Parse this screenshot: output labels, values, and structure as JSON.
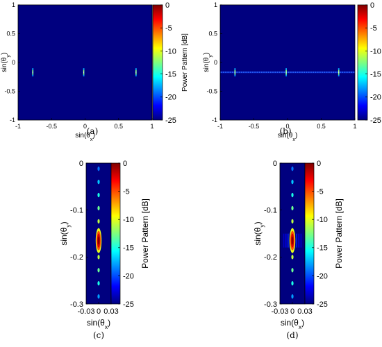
{
  "chart_data": [
    {
      "id": "a",
      "type": "heatmap",
      "caption": "(a)",
      "xlabel": "sin(θx)",
      "ylabel": "sin(θy)",
      "colorbar_label": "Power Pattern [dB]",
      "xlim": [
        -1,
        1
      ],
      "ylim": [
        -1,
        1
      ],
      "x_ticks": [
        -1,
        -0.5,
        0,
        0.5,
        1
      ],
      "x_tick_labels": [
        "-1",
        "-0.5",
        "0",
        "0.5",
        "1"
      ],
      "y_ticks": [
        1,
        0.5,
        0,
        -0.5,
        -1
      ],
      "y_tick_labels": [
        "1",
        "0.5",
        "0",
        "-0.5",
        "-1"
      ],
      "clim": [
        -25,
        0
      ],
      "colorbar_ticks": [
        0,
        -5,
        -10,
        -15,
        -20,
        -25
      ],
      "colorbar_tick_labels": [
        "0",
        "-5",
        "-10",
        "-15",
        "-20",
        "-25"
      ],
      "beams": [
        {
          "x": -0.78,
          "y": -0.17,
          "peak_db": -12
        },
        {
          "x": -0.02,
          "y": -0.17,
          "peak_db": -12
        },
        {
          "x": 0.76,
          "y": -0.17,
          "peak_db": -12
        }
      ],
      "sidelobe_band": false
    },
    {
      "id": "b",
      "type": "heatmap",
      "caption": "(b)",
      "xlabel": "sin(θx)",
      "ylabel": "sin(θy)",
      "colorbar_label": "Power Pattern [dB]",
      "xlim": [
        -1,
        1
      ],
      "ylim": [
        -1,
        1
      ],
      "x_ticks": [
        -1,
        -0.5,
        0,
        0.5,
        1
      ],
      "x_tick_labels": [
        "-1",
        "-0.5",
        "0",
        "0.5",
        "1"
      ],
      "y_ticks": [
        1,
        0.5,
        0,
        -0.5,
        -1
      ],
      "y_tick_labels": [
        "1",
        "0.5",
        "0",
        "-0.5",
        "-1"
      ],
      "clim": [
        -25,
        0
      ],
      "colorbar_ticks": [
        0,
        -5,
        -10,
        -15,
        -20,
        -25
      ],
      "colorbar_tick_labels": [
        "0",
        "-5",
        "-10",
        "-15",
        "-20",
        "-25"
      ],
      "beams": [
        {
          "x": -0.78,
          "y": -0.17,
          "peak_db": -12
        },
        {
          "x": -0.02,
          "y": -0.17,
          "peak_db": -12
        },
        {
          "x": 0.76,
          "y": -0.17,
          "peak_db": -12
        }
      ],
      "sidelobe_band": true
    },
    {
      "id": "c",
      "type": "heatmap",
      "caption": "(c)",
      "xlabel": "sin(θx)",
      "ylabel": "sin(θy)",
      "colorbar_label": "Power Pattern [dB]",
      "xlim": [
        -0.03,
        0.03
      ],
      "ylim": [
        -0.3,
        0
      ],
      "x_ticks": [
        -0.03,
        0,
        0.03
      ],
      "x_tick_labels": [
        "-0.03",
        "0",
        "0.03"
      ],
      "y_ticks": [
        0,
        -0.1,
        -0.2,
        -0.3
      ],
      "y_tick_labels": [
        "0",
        "-0.1",
        "-0.2",
        "-0.3"
      ],
      "clim": [
        -25,
        0
      ],
      "colorbar_ticks": [
        0,
        -5,
        -10,
        -15,
        -20,
        -25
      ],
      "colorbar_tick_labels": [
        "0",
        "-5",
        "-10",
        "-15",
        "-20",
        "-25"
      ],
      "main_lobe": {
        "x": 0,
        "y": -0.165,
        "peak_db": 0
      },
      "side_lobes": [
        {
          "y": -0.012,
          "db": -19
        },
        {
          "y": -0.04,
          "db": -17
        },
        {
          "y": -0.068,
          "db": -15
        },
        {
          "y": -0.096,
          "db": -13
        },
        {
          "y": -0.124,
          "db": -11
        },
        {
          "y": -0.2,
          "db": -11
        },
        {
          "y": -0.228,
          "db": -13
        },
        {
          "y": -0.256,
          "db": -15
        },
        {
          "y": -0.284,
          "db": -18
        }
      ],
      "horizontal_fringes": false
    },
    {
      "id": "d",
      "type": "heatmap",
      "caption": "(d)",
      "xlabel": "sin(θx)",
      "ylabel": "sin(θy)",
      "colorbar_label": "Power Pattern [dB]",
      "xlim": [
        -0.03,
        0.03
      ],
      "ylim": [
        -0.3,
        0
      ],
      "x_ticks": [
        -0.03,
        0,
        0.03
      ],
      "x_tick_labels": [
        "-0.03",
        "0",
        "0.03"
      ],
      "y_ticks": [
        0,
        -0.1,
        -0.2,
        -0.3
      ],
      "y_tick_labels": [
        "0",
        "-0.1",
        "-0.2",
        "-0.3"
      ],
      "clim": [
        -25,
        0
      ],
      "colorbar_ticks": [
        0,
        -5,
        -10,
        -15,
        -20,
        -25
      ],
      "colorbar_tick_labels": [
        "0",
        "-5",
        "-10",
        "-15",
        "-20",
        "-25"
      ],
      "main_lobe": {
        "x": 0,
        "y": -0.165,
        "peak_db": 0
      },
      "side_lobes": [
        {
          "y": -0.012,
          "db": -19
        },
        {
          "y": -0.04,
          "db": -17
        },
        {
          "y": -0.068,
          "db": -15
        },
        {
          "y": -0.096,
          "db": -13
        },
        {
          "y": -0.124,
          "db": -11
        },
        {
          "y": -0.2,
          "db": -11
        },
        {
          "y": -0.228,
          "db": -13
        },
        {
          "y": -0.256,
          "db": -15
        },
        {
          "y": -0.284,
          "db": -18
        }
      ],
      "horizontal_fringes": true
    }
  ],
  "colormap": [
    "#00007f",
    "#0000ff",
    "#007fff",
    "#00ffff",
    "#7fff7f",
    "#ffff00",
    "#ff7f00",
    "#ff0000",
    "#7f0000"
  ],
  "background_color": "#00007f"
}
